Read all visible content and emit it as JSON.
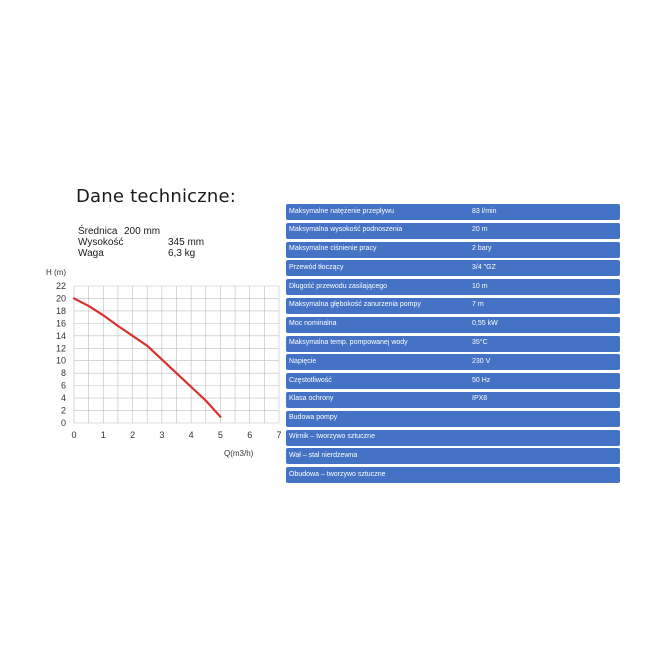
{
  "title": "Dane techniczne:",
  "dimensions": [
    {
      "label": "Średnica",
      "value": "200 mm"
    },
    {
      "label": "Wysokość",
      "value": "345 mm"
    },
    {
      "label": "Waga",
      "value": "6,3 kg"
    }
  ],
  "chart_data": {
    "type": "line",
    "ylabel": "H (m)",
    "xlabel": "Q(m3/h)",
    "xlim": [
      0,
      7
    ],
    "ylim": [
      0,
      22
    ],
    "x_ticks": [
      0,
      1,
      2,
      3,
      4,
      5,
      6,
      7
    ],
    "y_ticks": [
      0,
      2,
      4,
      6,
      8,
      10,
      12,
      14,
      16,
      18,
      20,
      22
    ],
    "grid": true,
    "series": [
      {
        "color": "#d93030",
        "points": [
          [
            0,
            20
          ],
          [
            0.5,
            18.8
          ],
          [
            1,
            17.3
          ],
          [
            1.5,
            15.6
          ],
          [
            2,
            14
          ],
          [
            2.5,
            12.4
          ],
          [
            3,
            10.2
          ],
          [
            3.5,
            8
          ],
          [
            4,
            5.8
          ],
          [
            4.5,
            3.6
          ],
          [
            5,
            1
          ]
        ]
      }
    ]
  },
  "specs": [
    {
      "label": "Maksymalne natężenie przepływu",
      "value": "83 l/min"
    },
    {
      "label": "Maksymalna wysokość podnoszenia",
      "value": "20 m"
    },
    {
      "label": "Maksymalne ciśnienie pracy",
      "value": "2 bary"
    },
    {
      "label": "Przewód tłoczący",
      "value": "3/4 \"GZ"
    },
    {
      "label": "Długość przewodu zasilającego",
      "value": "10 m"
    },
    {
      "label": "Maksymalna głębokość zanurzenia pompy",
      "value": "7 m"
    },
    {
      "label": "Moc nominalna",
      "value": "0,55 kW"
    },
    {
      "label": "Maksymalna temp. pompowanej wody",
      "value": "35°C"
    },
    {
      "label": "Napięcie",
      "value": "230 V"
    },
    {
      "label": "Częstotliwość",
      "value": "50 Hz"
    },
    {
      "label": "Klasa ochrony",
      "value": "IPX8"
    },
    {
      "label": "Budowa pompy",
      "value": ""
    },
    {
      "label": "Wirnik – tworzywo sztuczne",
      "value": ""
    },
    {
      "label": "Wał – stal nierdzewna",
      "value": ""
    },
    {
      "label": "Obudowa – tworzywo sztuczne",
      "value": ""
    }
  ],
  "colors": {
    "row_bg": "#4472c4",
    "row_text": "#ffffff",
    "curve": "#d93030",
    "grid": "#bfbfbf"
  }
}
